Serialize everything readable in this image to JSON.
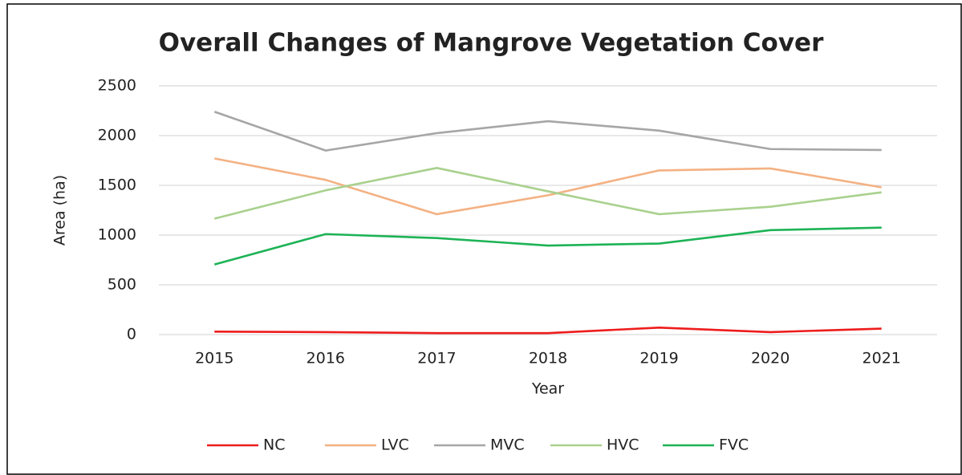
{
  "chart_data": {
    "type": "line",
    "title": "Overall Changes of Mangrove Vegetation Cover",
    "x_label": "Year",
    "y_label": "Area (ha)",
    "categories": [
      "2015",
      "2016",
      "2017",
      "2018",
      "2019",
      "2020",
      "2021"
    ],
    "series": [
      {
        "name": "NC",
        "color": "#ee1c1c",
        "values": [
          30,
          25,
          15,
          15,
          70,
          25,
          60
        ]
      },
      {
        "name": "LVC",
        "color": "#f4b183",
        "values": [
          1770,
          1555,
          1210,
          1400,
          1650,
          1670,
          1480
        ]
      },
      {
        "name": "MVC",
        "color": "#a6a6a6",
        "values": [
          2240,
          1850,
          2025,
          2145,
          2050,
          1865,
          1855
        ]
      },
      {
        "name": "HVC",
        "color": "#a9d18e",
        "values": [
          1165,
          1450,
          1675,
          1440,
          1210,
          1285,
          1430
        ]
      },
      {
        "name": "FVC",
        "color": "#1db356",
        "values": [
          705,
          1010,
          970,
          895,
          915,
          1050,
          1075
        ]
      }
    ],
    "ylim": [
      0,
      2500
    ],
    "yticks": [
      0,
      500,
      1000,
      1500,
      2000,
      2500
    ],
    "grid": true,
    "legend": "bottom"
  }
}
